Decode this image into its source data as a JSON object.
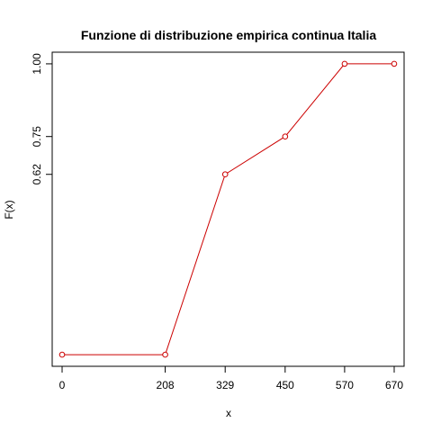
{
  "chart_data": {
    "type": "line",
    "title": "Funzione di distribuzione empirica continua Italia",
    "xlabel": "x",
    "ylabel": "F(x)",
    "x": [
      0,
      208,
      329,
      450,
      570,
      670
    ],
    "y": [
      0,
      0,
      0.62,
      0.75,
      1.0,
      1.0
    ],
    "x_ticks": [
      0,
      208,
      329,
      450,
      570,
      670
    ],
    "x_tick_labels": [
      "0",
      "208",
      "329",
      "450",
      "570",
      "670"
    ],
    "y_ticks": [
      0.62,
      0.75,
      1.0
    ],
    "y_tick_labels": [
      "0.62",
      "0.75",
      "1.00"
    ],
    "xlim": [
      -20,
      690
    ],
    "ylim": [
      -0.04,
      1.04
    ],
    "series_color": "#cc0000",
    "marker": "open-circle",
    "grid": false
  }
}
